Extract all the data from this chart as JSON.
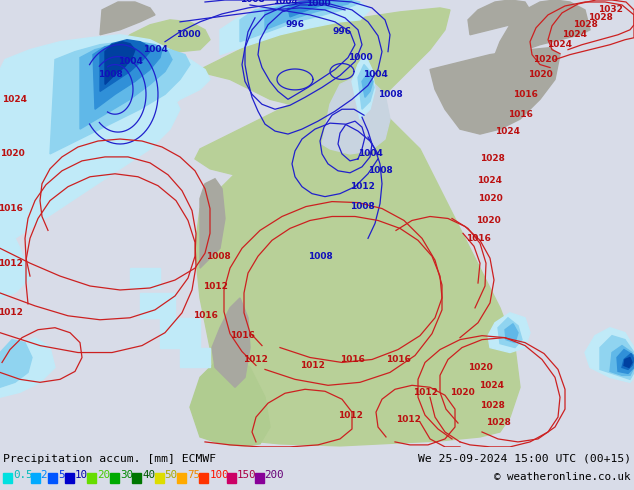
{
  "title_left": "Precipitation accum. [mm] ECMWF",
  "title_right": "We 25-09-2024 15:00 UTC (00+15)",
  "copyright": "© weatheronline.co.uk",
  "legend_values": [
    "0.5",
    "2",
    "5",
    "10",
    "20",
    "30",
    "40",
    "50",
    "75",
    "100",
    "150",
    "200"
  ],
  "bg_color": "#d8dce8",
  "bottom_bar_color": "#dcdce8",
  "figsize": [
    6.34,
    4.9
  ],
  "dpi": 100,
  "ocean_color": "#c8d4e0",
  "land_color": "#c8d8b0",
  "land_green": "#b8d098",
  "land_gray": "#a8a8a0",
  "precip_colors": {
    "very_light": "#c0eaf8",
    "light": "#90d4f0",
    "medium_light": "#60b8e8",
    "medium": "#3090d8",
    "medium_dark": "#1068c0",
    "dark": "#0040a0",
    "very_dark": "#0020608"
  },
  "blue_contour_color": "#2020cc",
  "red_contour_color": "#cc2020",
  "label_blue": "#1010bb",
  "label_red": "#bb1010",
  "swatch_colors": [
    "#00e0e0",
    "#00aaff",
    "#0055ff",
    "#0000cc",
    "#66dd00",
    "#00aa00",
    "#007700",
    "#dddd00",
    "#ffaa00",
    "#ff3300",
    "#cc0066",
    "#880099"
  ],
  "text_colors": [
    "#00bbbb",
    "#0088ff",
    "#0033ee",
    "#0000aa",
    "#44cc00",
    "#008800",
    "#005500",
    "#aaaa00",
    "#ee8800",
    "#ff1100",
    "#aa0044",
    "#660077"
  ]
}
